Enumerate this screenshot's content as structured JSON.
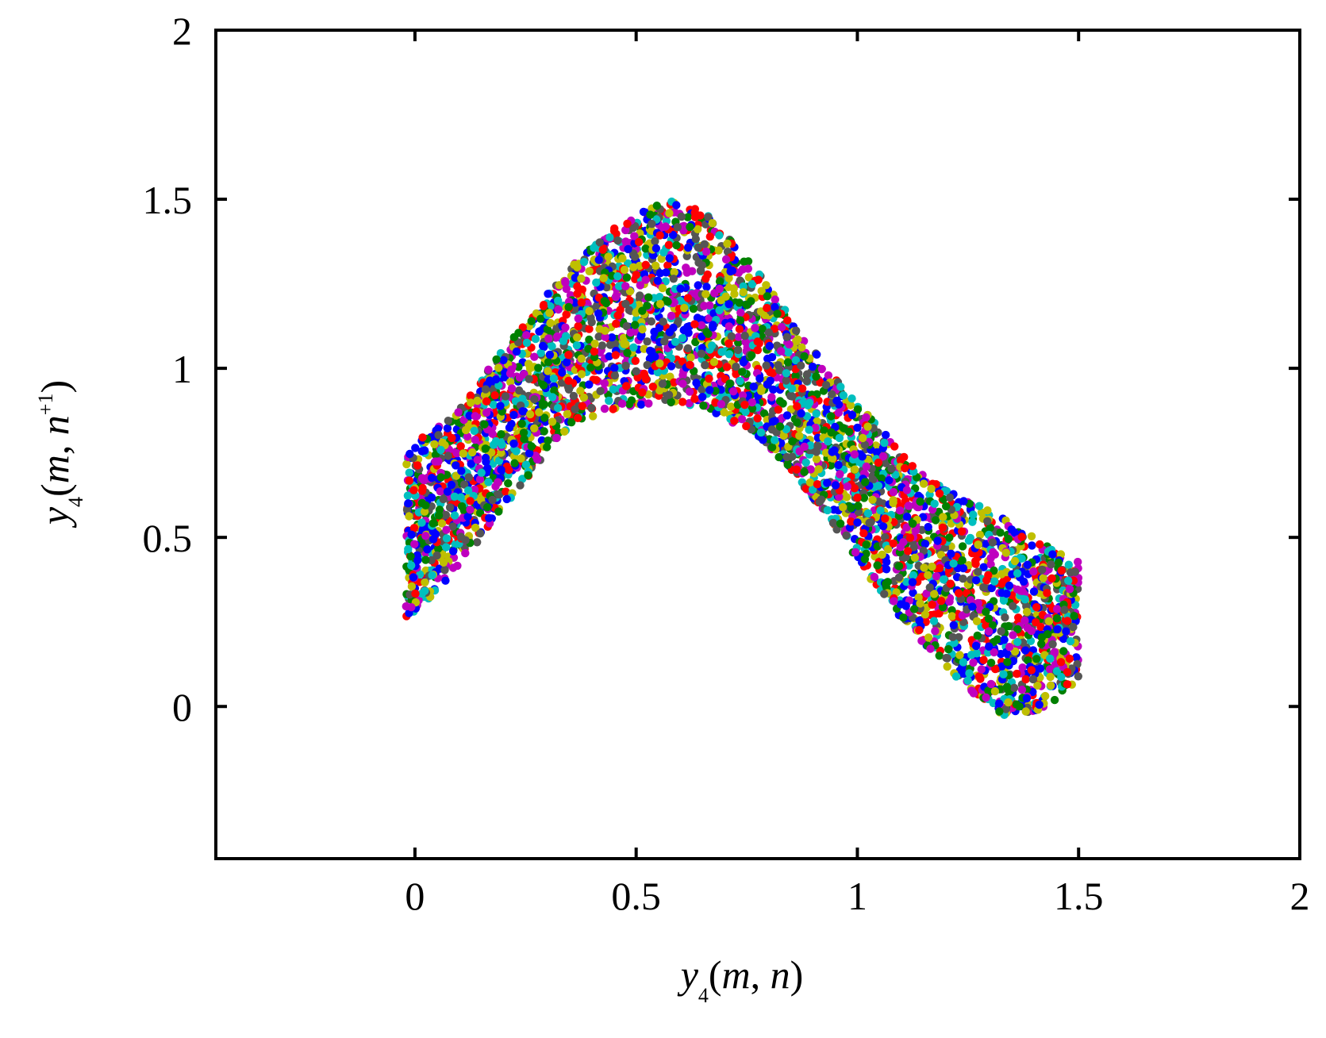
{
  "chart_data": {
    "type": "scatter",
    "title": "",
    "xlabel": {
      "var": "y",
      "sub": "4",
      "rest_open": "(",
      "arg1": "m",
      "sep": ", ",
      "arg2": "n",
      "rest_close": ")"
    },
    "ylabel": {
      "var": "y",
      "sub": "4",
      "rest_open": "(",
      "arg1": "m",
      "sep": ", ",
      "arg2": "n",
      "sup": "+1",
      "rest_close": ")"
    },
    "xlim": [
      -0.45,
      2.0
    ],
    "ylim": [
      -0.45,
      2.0
    ],
    "xticks": [
      0,
      0.5,
      1,
      1.5,
      2
    ],
    "xtick_labels": [
      "0",
      "0.5",
      "1",
      "1.5",
      "2"
    ],
    "yticks": [
      0,
      0.5,
      1,
      1.5,
      2
    ],
    "ytick_labels": [
      "0",
      "0.5",
      "1",
      "1.5",
      "2"
    ],
    "grid": false,
    "legend": false,
    "marker_colors": [
      "#ff0000",
      "#0000ff",
      "#008000",
      "#00bfbf",
      "#bfbf00",
      "#bf00bf",
      "#555555"
    ],
    "series": [
      {
        "description_kind": "dense cloud of colored points forming an arched band",
        "lower_boundary": [
          [
            -0.02,
            0.26
          ],
          [
            0.05,
            0.34
          ],
          [
            0.15,
            0.5
          ],
          [
            0.25,
            0.67
          ],
          [
            0.35,
            0.83
          ],
          [
            0.45,
            0.88
          ],
          [
            0.55,
            0.9
          ],
          [
            0.65,
            0.88
          ],
          [
            0.75,
            0.82
          ],
          [
            0.85,
            0.7
          ],
          [
            0.95,
            0.53
          ],
          [
            1.05,
            0.34
          ],
          [
            1.15,
            0.18
          ],
          [
            1.25,
            0.05
          ],
          [
            1.33,
            -0.03
          ],
          [
            1.4,
            -0.02
          ],
          [
            1.46,
            0.03
          ],
          [
            1.5,
            0.08
          ]
        ],
        "upper_boundary": [
          [
            -0.02,
            0.75
          ],
          [
            0.02,
            0.8
          ],
          [
            0.1,
            0.88
          ],
          [
            0.2,
            1.06
          ],
          [
            0.3,
            1.22
          ],
          [
            0.4,
            1.37
          ],
          [
            0.5,
            1.46
          ],
          [
            0.58,
            1.5
          ],
          [
            0.66,
            1.46
          ],
          [
            0.75,
            1.33
          ],
          [
            0.85,
            1.15
          ],
          [
            0.95,
            0.97
          ],
          [
            1.05,
            0.83
          ],
          [
            1.12,
            0.72
          ],
          [
            1.2,
            0.64
          ],
          [
            1.3,
            0.58
          ],
          [
            1.4,
            0.5
          ],
          [
            1.5,
            0.43
          ]
        ]
      }
    ]
  }
}
